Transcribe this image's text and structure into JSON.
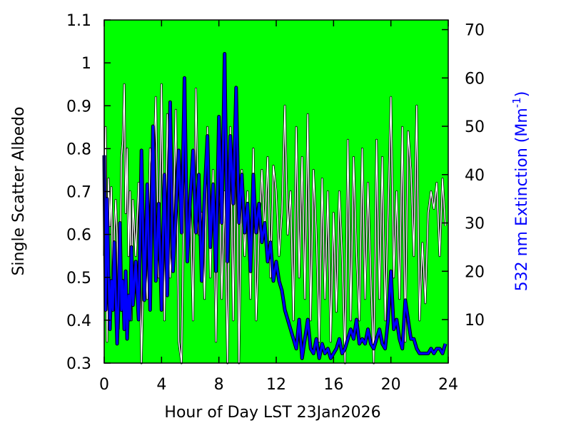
{
  "chart_data": {
    "type": "line",
    "background_color": "#00ff00",
    "grid": false,
    "legend": "none",
    "xlabel": "Hour of Day LST 23Jan2026",
    "ylabel_left": "Single Scatter Albedo",
    "ylabel_right_prefix": "532 nm Extinction (Mm",
    "ylabel_right_sup": "-1",
    "ylabel_right_suffix": ")",
    "xlim": [
      0,
      24
    ],
    "ylim_left": [
      0.3,
      1.1
    ],
    "ylim_right": [
      1,
      72
    ],
    "xticks": [
      "0",
      "4",
      "8",
      "12",
      "16",
      "20",
      "24"
    ],
    "yticks_left": [
      "0.3",
      "0.4",
      "0.5",
      "0.6",
      "0.7",
      "0.8",
      "0.9",
      "1",
      "1.1"
    ],
    "yticks_right": [
      "10",
      "20",
      "30",
      "40",
      "50",
      "60",
      "70"
    ],
    "series": [
      {
        "axis": "left",
        "color": "#ffffff",
        "outline": "#000000",
        "x": [
          0,
          0.1,
          0.2,
          0.3,
          0.4,
          0.5,
          0.6,
          0.7,
          0.8,
          0.9,
          1.0,
          1.1,
          1.2,
          1.3,
          1.4,
          1.5,
          1.6,
          1.7,
          1.8,
          1.9,
          2.0,
          2.2,
          2.4,
          2.6,
          2.8,
          3.0,
          3.2,
          3.4,
          3.6,
          3.8,
          4.0,
          4.2,
          4.4,
          4.6,
          4.8,
          5.0,
          5.2,
          5.4,
          5.6,
          5.8,
          6.0,
          6.2,
          6.4,
          6.6,
          6.8,
          7.0,
          7.2,
          7.4,
          7.6,
          7.8,
          8.0,
          8.2,
          8.4,
          8.6,
          8.8,
          9.0,
          9.2,
          9.4,
          9.6,
          9.8,
          10.0,
          10.2,
          10.4,
          10.6,
          10.8,
          11.0,
          11.2,
          11.4,
          11.6,
          11.8,
          12.0,
          12.2,
          12.4,
          12.6,
          12.8,
          13.0,
          13.2,
          13.4,
          13.6,
          13.8,
          14.0,
          14.2,
          14.4,
          14.6,
          14.8,
          15.0,
          15.2,
          15.4,
          15.6,
          15.8,
          16.0,
          16.2,
          16.4,
          16.6,
          16.8,
          17.0,
          17.2,
          17.4,
          17.6,
          17.8,
          18.0,
          18.2,
          18.4,
          18.6,
          18.8,
          19.0,
          19.2,
          19.4,
          19.6,
          19.8,
          20.0,
          20.2,
          20.4,
          20.6,
          20.8,
          21.0,
          21.2,
          21.4,
          21.6,
          21.8,
          22.0,
          22.2,
          22.4,
          22.6,
          22.8,
          23.0,
          23.2,
          23.4,
          23.6,
          23.8
        ],
        "values": [
          0.55,
          0.85,
          0.35,
          0.73,
          0.62,
          0.71,
          0.45,
          0.6,
          0.68,
          0.6,
          0.38,
          0.5,
          0.78,
          0.82,
          0.95,
          0.65,
          0.8,
          0.55,
          0.7,
          0.4,
          0.68,
          0.55,
          0.72,
          0.3,
          0.6,
          0.45,
          0.8,
          0.7,
          0.92,
          0.5,
          0.95,
          0.4,
          0.88,
          0.5,
          0.6,
          0.89,
          0.35,
          0.3,
          0.8,
          0.55,
          0.7,
          0.4,
          0.94,
          0.6,
          0.65,
          0.45,
          0.85,
          0.5,
          0.75,
          0.35,
          0.8,
          0.45,
          0.7,
          0.3,
          0.85,
          0.4,
          0.9,
          0.3,
          0.75,
          0.55,
          0.7,
          0.45,
          0.8,
          0.4,
          0.6,
          0.75,
          0.6,
          0.78,
          0.5,
          0.76,
          0.7,
          0.55,
          0.65,
          0.9,
          0.6,
          0.7,
          0.4,
          0.85,
          0.5,
          0.78,
          0.45,
          0.88,
          0.4,
          0.75,
          0.6,
          0.35,
          0.73,
          0.45,
          0.7,
          0.35,
          0.65,
          0.42,
          0.7,
          0.55,
          0.3,
          0.82,
          0.4,
          0.78,
          0.55,
          0.4,
          0.8,
          0.45,
          0.72,
          0.5,
          0.3,
          0.82,
          0.45,
          0.78,
          0.4,
          0.65,
          0.92,
          0.5,
          0.7,
          0.45,
          0.85,
          0.35,
          0.84,
          0.75,
          0.55,
          0.9,
          0.4,
          0.58,
          0.44,
          0.65,
          0.7,
          0.66,
          0.72,
          0.55,
          0.73,
          0.62
        ]
      },
      {
        "axis": "right",
        "color": "#0000ff",
        "outline": "#000000",
        "x": [
          0,
          0.1,
          0.2,
          0.3,
          0.4,
          0.5,
          0.6,
          0.7,
          0.8,
          0.9,
          1.0,
          1.1,
          1.2,
          1.3,
          1.4,
          1.5,
          1.6,
          1.7,
          1.8,
          1.9,
          2.0,
          2.2,
          2.4,
          2.6,
          2.8,
          3.0,
          3.2,
          3.4,
          3.6,
          3.8,
          4.0,
          4.2,
          4.4,
          4.6,
          4.8,
          5.0,
          5.2,
          5.4,
          5.6,
          5.8,
          6.0,
          6.2,
          6.4,
          6.6,
          6.8,
          7.0,
          7.2,
          7.4,
          7.6,
          7.8,
          8.0,
          8.2,
          8.4,
          8.6,
          8.8,
          9.0,
          9.2,
          9.4,
          9.6,
          9.8,
          10.0,
          10.2,
          10.4,
          10.6,
          10.8,
          11.0,
          11.2,
          11.4,
          11.6,
          11.8,
          12.0,
          12.2,
          12.4,
          12.6,
          12.8,
          13.0,
          13.2,
          13.4,
          13.6,
          13.8,
          14.0,
          14.2,
          14.4,
          14.6,
          14.8,
          15.0,
          15.2,
          15.4,
          15.6,
          15.8,
          16.0,
          16.2,
          16.4,
          16.6,
          16.8,
          17.0,
          17.2,
          17.4,
          17.6,
          17.8,
          18.0,
          18.2,
          18.4,
          18.6,
          18.8,
          19.0,
          19.2,
          19.4,
          19.6,
          19.8,
          20.0,
          20.2,
          20.4,
          20.6,
          20.8,
          21.0,
          21.2,
          21.4,
          21.6,
          21.8,
          22.0,
          22.2,
          22.4,
          22.6,
          22.8,
          23.0,
          23.2,
          23.4,
          23.6,
          23.8
        ],
        "values": [
          44,
          12,
          35,
          20,
          8,
          18,
          12,
          26,
          15,
          5,
          14,
          30,
          12,
          18,
          8,
          20,
          6,
          15,
          10,
          25,
          13,
          22,
          10,
          45,
          14,
          38,
          12,
          50,
          18,
          34,
          12,
          40,
          15,
          55,
          20,
          32,
          45,
          28,
          60,
          22,
          35,
          45,
          28,
          40,
          18,
          36,
          48,
          25,
          38,
          20,
          52,
          30,
          65,
          22,
          48,
          34,
          58,
          30,
          40,
          28,
          34,
          20,
          40,
          28,
          34,
          26,
          30,
          22,
          26,
          18,
          22,
          18,
          16,
          12,
          10,
          8,
          6,
          4,
          10,
          2,
          6,
          10,
          4,
          3,
          6,
          2,
          5,
          3,
          4,
          2,
          3,
          4,
          6,
          3,
          4,
          6,
          8,
          6,
          10,
          5,
          6,
          5,
          8,
          5,
          4,
          6,
          8,
          5,
          4,
          10,
          20,
          8,
          10,
          6,
          4,
          14,
          10,
          6,
          6,
          4,
          3,
          3,
          3,
          3,
          4,
          3,
          4,
          4,
          3,
          5
        ]
      }
    ]
  }
}
